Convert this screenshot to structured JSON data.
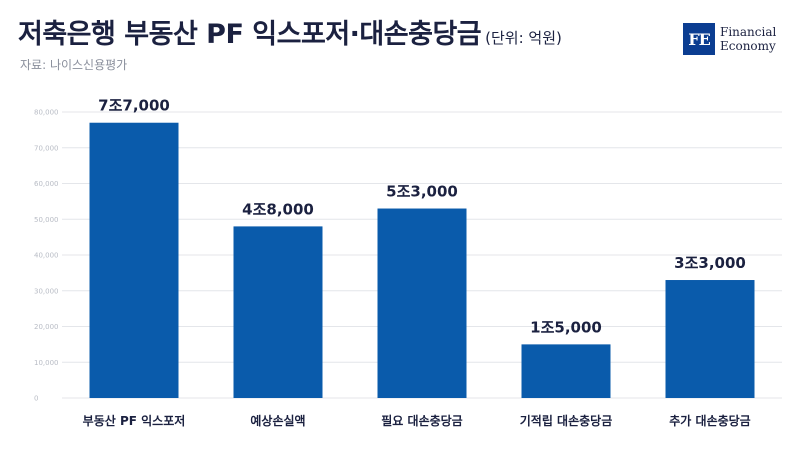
{
  "header": {
    "title": "저축은행 부동산 PF 익스포저·대손충당금",
    "unit": "(단위: 억원)",
    "source": "자료: 나이스신용평가"
  },
  "logo": {
    "mark": "FE",
    "line1": "Financial",
    "line2": "Economy"
  },
  "colors": {
    "bar": "#0a5bab",
    "text": "#1b2140"
  },
  "chart_data": {
    "type": "bar",
    "categories": [
      "부동산 PF 익스포저",
      "예상손실액",
      "필요 대손충당금",
      "기적립 대손충당금",
      "추가 대손충당금"
    ],
    "values": [
      77000,
      48000,
      53000,
      15000,
      33000
    ],
    "data_labels": [
      "7조7,000",
      "4조8,000",
      "5조3,000",
      "1조5,000",
      "3조3,000"
    ],
    "ylim": [
      0,
      80000
    ],
    "yticks": [
      0,
      10000,
      20000,
      30000,
      40000,
      50000,
      60000,
      70000,
      80000
    ],
    "ytick_labels": [
      "0",
      "10,000",
      "20,000",
      "30,000",
      "40,000",
      "50,000",
      "60,000",
      "70,000",
      "80,000"
    ],
    "grid": true
  }
}
